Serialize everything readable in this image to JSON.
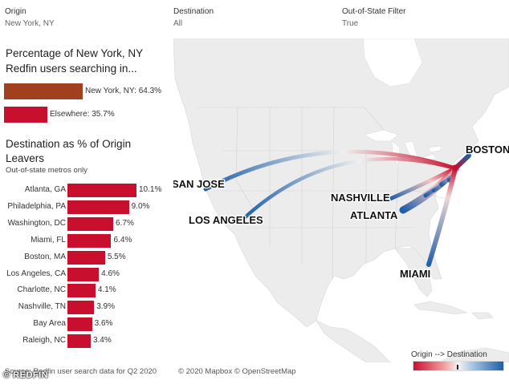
{
  "filters": [
    {
      "label": "Origin",
      "value": "New York, NY"
    },
    {
      "label": "Destination",
      "value": "All"
    },
    {
      "label": "Out-of-State Filter",
      "value": "True"
    }
  ],
  "share": {
    "title": "Percentage of New York, NY Redfin users searching in...",
    "items": [
      {
        "label": "New York, NY: 64.3%",
        "value": 64.3,
        "color": "#a0401f"
      },
      {
        "label": "Elsewhere: 35.7%",
        "value": 35.7,
        "color": "#c8102e"
      }
    ]
  },
  "destinations": {
    "title": "Destination as % of Origin Leavers",
    "subtitle": "Out-of-state metros only",
    "rows": [
      {
        "name": "Atlanta, GA",
        "value": 10.1,
        "label": "10.1%"
      },
      {
        "name": "Philadelphia, PA",
        "value": 9.0,
        "label": "9.0%"
      },
      {
        "name": "Washington, DC",
        "value": 6.7,
        "label": "6.7%"
      },
      {
        "name": "Miami, FL",
        "value": 6.4,
        "label": "6.4%"
      },
      {
        "name": "Boston, MA",
        "value": 5.5,
        "label": "5.5%"
      },
      {
        "name": "Los Angeles, CA",
        "value": 4.6,
        "label": "4.6%"
      },
      {
        "name": "Charlotte, NC",
        "value": 4.1,
        "label": "4.1%"
      },
      {
        "name": "Nashville, TN",
        "value": 3.9,
        "label": "3.9%"
      },
      {
        "name": "Bay Area",
        "value": 3.6,
        "label": "3.6%"
      },
      {
        "name": "Raleigh, NC",
        "value": 3.4,
        "label": "3.4%"
      }
    ]
  },
  "map": {
    "cities": [
      "SAN JOSE",
      "LOS ANGELES",
      "NASHVILLE",
      "ATLANTA",
      "MIAMI",
      "BOSTON"
    ],
    "credit": "© 2020 Mapbox © OpenStreetMap"
  },
  "legend": {
    "label": "Origin --> Destination"
  },
  "footer": {
    "source": "Source: Redfin user search data for Q2 2020",
    "watermark": "© REDFIN"
  }
}
